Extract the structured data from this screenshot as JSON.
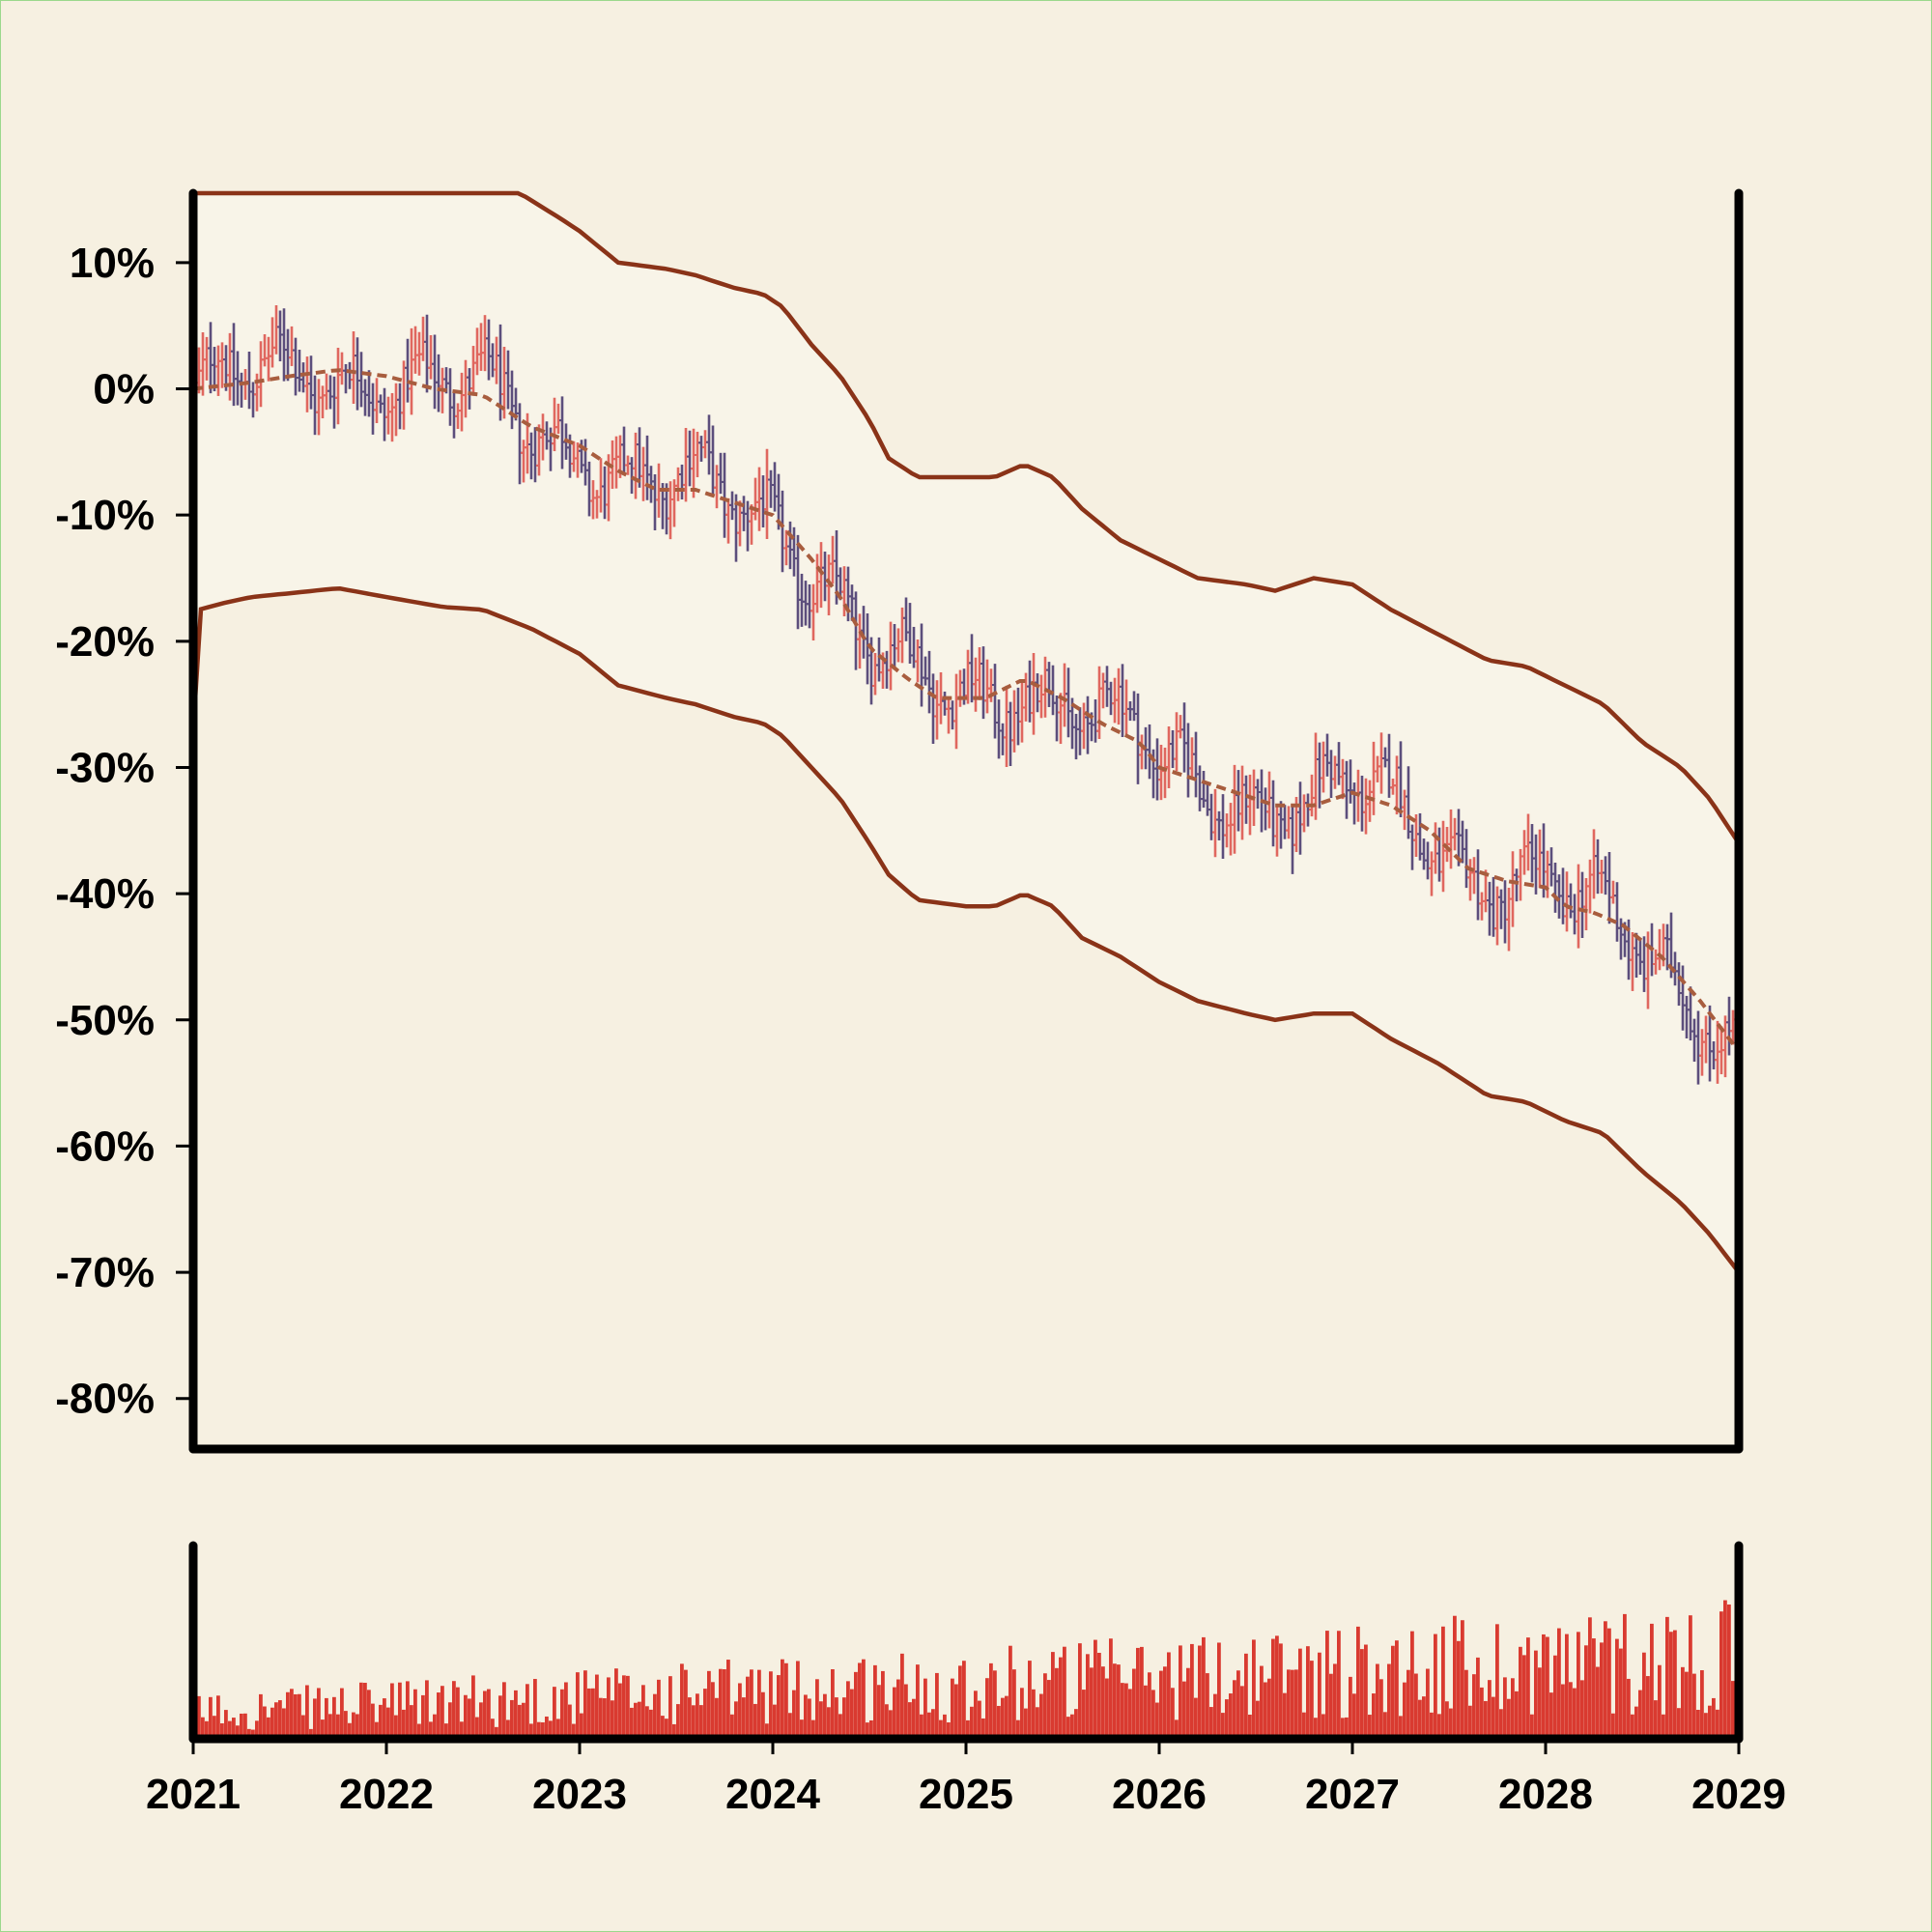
{
  "chart_data": {
    "type": "ohlc",
    "title": "",
    "xlabel": "",
    "ylabel": "",
    "colors": {
      "background": "#f6f0e1",
      "band_fill": "#f8f4e8",
      "up": "#e0675f",
      "down": "#5c4e7c",
      "envelope": "#8a3318",
      "moving_average": "#a85d3e",
      "volume": "#d93a30",
      "axis": "#000000"
    },
    "x_ticks": [
      "2021",
      "2022",
      "2023",
      "2024",
      "2025",
      "2026",
      "2027",
      "2028",
      "2029"
    ],
    "x_range": [
      2021,
      2029
    ],
    "y_ticks": [
      "10%",
      "0%",
      "-10%",
      "-20%",
      "-30%",
      "-40%",
      "-50%",
      "-60%",
      "-70%",
      "-80%"
    ],
    "y_tick_values": [
      10,
      0,
      -10,
      -20,
      -30,
      -40,
      -50,
      -60,
      -70,
      -80
    ],
    "ylim": [
      -84,
      15.5
    ],
    "grid": false,
    "legend": "none",
    "moving_average": {
      "style": "dashed",
      "points": [
        [
          2021.0,
          0
        ],
        [
          2021.3,
          0.5
        ],
        [
          2021.5,
          1
        ],
        [
          2021.75,
          1.5
        ],
        [
          2022.0,
          1
        ],
        [
          2022.25,
          0
        ],
        [
          2022.5,
          -0.5
        ],
        [
          2022.75,
          -3
        ],
        [
          2023.0,
          -4.5
        ],
        [
          2023.2,
          -6.5
        ],
        [
          2023.4,
          -8
        ],
        [
          2023.6,
          -8
        ],
        [
          2023.8,
          -9
        ],
        [
          2024.0,
          -10
        ],
        [
          2024.2,
          -13.5
        ],
        [
          2024.35,
          -16.5
        ],
        [
          2024.5,
          -20.5
        ],
        [
          2024.7,
          -23
        ],
        [
          2024.85,
          -24.5
        ],
        [
          2025.1,
          -24.5
        ],
        [
          2025.3,
          -23
        ],
        [
          2025.5,
          -24.5
        ],
        [
          2025.7,
          -26.5
        ],
        [
          2025.9,
          -28
        ],
        [
          2026.0,
          -30
        ],
        [
          2026.2,
          -31
        ],
        [
          2026.4,
          -32
        ],
        [
          2026.6,
          -33
        ],
        [
          2026.8,
          -33
        ],
        [
          2027.0,
          -32
        ],
        [
          2027.2,
          -33
        ],
        [
          2027.4,
          -35
        ],
        [
          2027.6,
          -38
        ],
        [
          2027.8,
          -39
        ],
        [
          2028.0,
          -39.5
        ],
        [
          2028.1,
          -41
        ],
        [
          2028.25,
          -41.5
        ],
        [
          2028.4,
          -42.5
        ],
        [
          2028.6,
          -45
        ],
        [
          2028.8,
          -48.5
        ],
        [
          2029.0,
          -52.5
        ]
      ]
    },
    "upper_band": {
      "points": [
        [
          2021.0,
          15.5
        ],
        [
          2022.0,
          15.5
        ],
        [
          2022.69,
          15.5
        ],
        [
          2022.9,
          13.5
        ],
        [
          2023.0,
          12.5
        ],
        [
          2023.2,
          10
        ],
        [
          2023.45,
          9.5
        ],
        [
          2023.6,
          9
        ],
        [
          2023.8,
          8
        ],
        [
          2023.95,
          7.5
        ],
        [
          2024.05,
          6.5
        ],
        [
          2024.2,
          3.5
        ],
        [
          2024.35,
          1
        ],
        [
          2024.5,
          -2.5
        ],
        [
          2024.6,
          -5.5
        ],
        [
          2024.75,
          -7
        ],
        [
          2025.0,
          -7
        ],
        [
          2025.15,
          -7
        ],
        [
          2025.3,
          -6
        ],
        [
          2025.45,
          -7
        ],
        [
          2025.6,
          -9.5
        ],
        [
          2025.8,
          -12
        ],
        [
          2026.0,
          -13.5
        ],
        [
          2026.2,
          -15
        ],
        [
          2026.45,
          -15.5
        ],
        [
          2026.6,
          -16
        ],
        [
          2026.8,
          -15
        ],
        [
          2027.0,
          -15.5
        ],
        [
          2027.2,
          -17.5
        ],
        [
          2027.45,
          -19.5
        ],
        [
          2027.7,
          -21.5
        ],
        [
          2027.9,
          -22
        ],
        [
          2028.1,
          -23.5
        ],
        [
          2028.3,
          -25
        ],
        [
          2028.5,
          -28
        ],
        [
          2028.7,
          -30
        ],
        [
          2028.85,
          -32.5
        ],
        [
          2029.0,
          -36
        ]
      ]
    },
    "lower_band": {
      "points": [
        [
          2021.0,
          -27
        ],
        [
          2021.03,
          -17.5
        ],
        [
          2021.15,
          -17
        ],
        [
          2021.3,
          -16.5
        ],
        [
          2021.5,
          -16.2
        ],
        [
          2021.75,
          -15.8
        ],
        [
          2022.0,
          -16.5
        ],
        [
          2022.3,
          -17.3
        ],
        [
          2022.5,
          -17.5
        ],
        [
          2022.75,
          -19
        ],
        [
          2023.0,
          -21
        ],
        [
          2023.2,
          -23.5
        ],
        [
          2023.45,
          -24.5
        ],
        [
          2023.6,
          -25
        ],
        [
          2023.8,
          -26
        ],
        [
          2023.95,
          -26.5
        ],
        [
          2024.05,
          -27.5
        ],
        [
          2024.2,
          -30
        ],
        [
          2024.35,
          -32.5
        ],
        [
          2024.5,
          -36
        ],
        [
          2024.6,
          -38.5
        ],
        [
          2024.75,
          -40.5
        ],
        [
          2025.0,
          -41
        ],
        [
          2025.15,
          -41
        ],
        [
          2025.3,
          -40
        ],
        [
          2025.45,
          -41
        ],
        [
          2025.6,
          -43.5
        ],
        [
          2025.8,
          -45
        ],
        [
          2026.0,
          -47
        ],
        [
          2026.2,
          -48.5
        ],
        [
          2026.45,
          -49.5
        ],
        [
          2026.6,
          -50
        ],
        [
          2026.8,
          -49.5
        ],
        [
          2027.0,
          -49.5
        ],
        [
          2027.2,
          -51.5
        ],
        [
          2027.45,
          -53.5
        ],
        [
          2027.7,
          -56
        ],
        [
          2027.9,
          -56.5
        ],
        [
          2028.1,
          -58
        ],
        [
          2028.3,
          -59
        ],
        [
          2028.5,
          -62
        ],
        [
          2028.7,
          -64.5
        ],
        [
          2028.85,
          -67
        ],
        [
          2029.0,
          -70
        ]
      ]
    },
    "bars_note": "Weekly OHLC bars; price path follows the moving-average trend with noise.",
    "bar_count": 400,
    "volume": {
      "ylim": [
        0,
        140
      ]
    }
  }
}
